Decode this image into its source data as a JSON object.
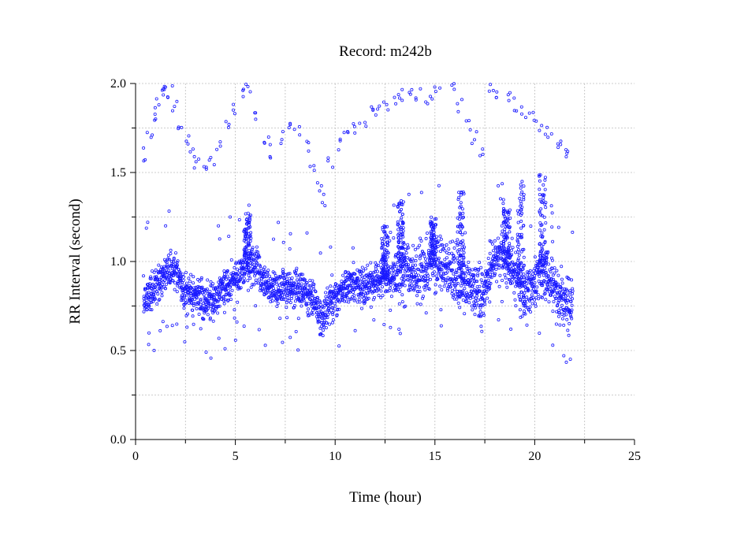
{
  "chart_data": {
    "type": "scatter",
    "title": "Record:  m242b",
    "xlabel": "Time (hour)",
    "ylabel": "RR Interval (second)",
    "xlim": [
      0,
      25
    ],
    "ylim": [
      0.0,
      2.0
    ],
    "xticks": [
      "0",
      "5",
      "10",
      "15",
      "20",
      "25"
    ],
    "yticks": [
      "0.0",
      "0.5",
      "1.0",
      "1.5",
      "2.0"
    ],
    "grid": true,
    "marker_color": "#1a1aff",
    "x_range": [
      0.4,
      21.9
    ],
    "trend": {
      "x": [
        0.4,
        1.0,
        1.5,
        2.0,
        2.5,
        3.0,
        3.5,
        4.0,
        4.5,
        5.0,
        5.5,
        6.0,
        6.5,
        7.0,
        7.5,
        8.0,
        8.5,
        9.0,
        9.3,
        9.6,
        10.0,
        10.5,
        11.0,
        11.5,
        12.0,
        12.5,
        13.0,
        13.5,
        14.0,
        14.5,
        15.0,
        15.5,
        16.0,
        16.5,
        17.0,
        17.5,
        18.0,
        18.5,
        19.0,
        19.5,
        20.0,
        20.5,
        21.0,
        21.5,
        21.9
      ],
      "y": [
        0.78,
        0.88,
        0.92,
        0.96,
        0.82,
        0.82,
        0.76,
        0.8,
        0.86,
        0.9,
        0.98,
        0.98,
        0.87,
        0.84,
        0.85,
        0.86,
        0.83,
        0.79,
        0.68,
        0.74,
        0.8,
        0.85,
        0.86,
        0.86,
        0.89,
        0.9,
        0.92,
        0.96,
        0.94,
        0.95,
        1.0,
        0.96,
        0.93,
        0.88,
        0.85,
        0.82,
        1.0,
        1.02,
        0.92,
        0.8,
        0.9,
        0.94,
        0.84,
        0.78,
        0.75
      ]
    },
    "outliers": {
      "x": [
        0.5,
        0.7,
        0.9,
        1.1,
        1.3,
        1.5,
        1.7,
        1.9,
        2.2,
        2.5,
        2.9,
        3.1,
        3.4,
        3.8,
        4.2,
        4.6,
        5.0,
        5.4,
        5.7,
        6.1,
        6.5,
        6.9,
        7.3,
        7.7,
        8.1,
        8.5,
        8.9,
        9.2,
        9.5,
        9.8,
        10.2,
        10.6,
        11.0,
        11.4,
        11.8,
        12.2,
        12.6,
        13.0,
        13.4,
        13.8,
        14.2,
        14.6,
        15.0,
        15.4,
        15.8,
        16.2,
        16.6,
        17.0,
        17.4,
        17.8,
        18.2,
        18.6,
        19.0,
        19.4,
        19.8,
        20.2,
        20.6,
        21.0,
        21.4,
        21.7
      ],
      "y": [
        1.6,
        1.7,
        1.82,
        1.9,
        1.93,
        1.95,
        1.96,
        1.86,
        1.78,
        1.7,
        1.62,
        1.55,
        1.5,
        1.58,
        1.65,
        1.75,
        1.86,
        1.93,
        1.97,
        1.8,
        1.7,
        1.62,
        1.7,
        1.78,
        1.72,
        1.64,
        1.55,
        1.42,
        1.35,
        1.55,
        1.65,
        1.72,
        1.76,
        1.8,
        1.84,
        1.86,
        1.88,
        1.9,
        1.93,
        1.96,
        1.94,
        1.91,
        1.95,
        1.98,
        1.96,
        1.88,
        1.78,
        1.7,
        1.62,
        1.98,
        1.95,
        1.92,
        1.88,
        1.84,
        1.8,
        1.76,
        1.72,
        1.68,
        1.64,
        1.6
      ]
    },
    "spike_regions": [
      {
        "x": 13.3,
        "ymax": 1.35
      },
      {
        "x": 14.9,
        "ymax": 1.25
      },
      {
        "x": 16.3,
        "ymax": 1.4
      },
      {
        "x": 18.6,
        "ymax": 1.3
      },
      {
        "x": 19.3,
        "ymax": 1.45
      },
      {
        "x": 20.4,
        "ymax": 1.5
      },
      {
        "x": 5.6,
        "ymax": 1.28
      },
      {
        "x": 12.5,
        "ymax": 1.2
      }
    ]
  }
}
